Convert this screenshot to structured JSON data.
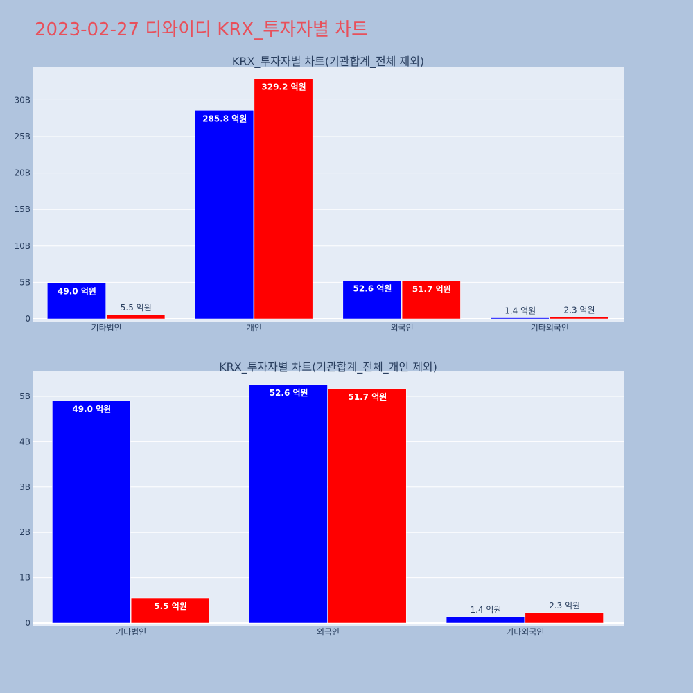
{
  "page": {
    "title": "2023-02-27 디와이디 KRX_투자자별 차트"
  },
  "colors": {
    "background": "#b0c4de",
    "plot_bg": "#e5ecf6",
    "grid": "#ffffff",
    "title": "#e8505b",
    "text": "#2a3f5f",
    "series_1": "#0000ff",
    "series_2": "#ff0000"
  },
  "chart_data": [
    {
      "type": "bar",
      "title": "KRX_투자자별 차트(기관합계_전체 제외)",
      "categories": [
        "기타법인",
        "개인",
        "외국인",
        "기타외국인"
      ],
      "series": [
        {
          "color": "#0000ff",
          "values": [
            4.9,
            28.58,
            5.26,
            0.14
          ],
          "labels": [
            "49.0 억원",
            "285.8 억원",
            "52.6 억원",
            "1.4 억원"
          ]
        },
        {
          "color": "#ff0000",
          "values": [
            0.55,
            32.92,
            5.17,
            0.23
          ],
          "labels": [
            "5.5 억원",
            "329.2 억원",
            "51.7 억원",
            "2.3 억원"
          ]
        }
      ],
      "ylim": [
        0,
        34.6
      ],
      "yticks": [
        0,
        5,
        10,
        15,
        20,
        25,
        30
      ],
      "ytick_labels": [
        "0",
        "5B",
        "10B",
        "15B",
        "20B",
        "25B",
        "30B"
      ],
      "grid": true,
      "legend": "none"
    },
    {
      "type": "bar",
      "title": "KRX_투자자별 차트(기관합계_전체_개인 제외)",
      "categories": [
        "기타법인",
        "외국인",
        "기타외국인"
      ],
      "series": [
        {
          "color": "#0000ff",
          "values": [
            4.9,
            5.26,
            0.14
          ],
          "labels": [
            "49.0 억원",
            "52.6 억원",
            "1.4 억원"
          ]
        },
        {
          "color": "#ff0000",
          "values": [
            0.55,
            5.17,
            0.23
          ],
          "labels": [
            "5.5 억원",
            "51.7 억원",
            "2.3 억원"
          ]
        }
      ],
      "ylim": [
        0,
        5.55
      ],
      "yticks": [
        0,
        1,
        2,
        3,
        4,
        5
      ],
      "ytick_labels": [
        "0",
        "1B",
        "2B",
        "3B",
        "4B",
        "5B"
      ],
      "grid": true,
      "legend": "none"
    }
  ]
}
